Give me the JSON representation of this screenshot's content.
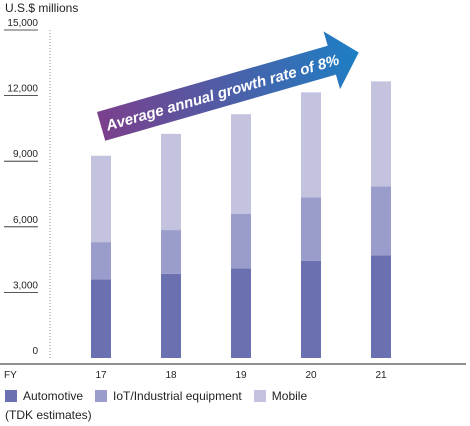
{
  "colors": {
    "automotive": "#6b70b0",
    "iot": "#9a9ccc",
    "mobile": "#c3c3e0",
    "arrow_start": "#7b3f8c",
    "arrow_end": "#1d7fc4",
    "axis": "#231f20",
    "grid_dots": "#8a8a8a"
  },
  "chart_data": {
    "type": "bar",
    "stacked": true,
    "unit_label": "U.S.$ millions",
    "x_axis_prefix": "FY",
    "categories": [
      "17",
      "18",
      "19",
      "20",
      "21"
    ],
    "series": [
      {
        "name": "Automotive",
        "values": [
          3600,
          3850,
          4100,
          4450,
          4700
        ]
      },
      {
        "name": "IoT/Industrial equipment",
        "values": [
          1700,
          2000,
          2500,
          2900,
          3150
        ]
      },
      {
        "name": "Mobile",
        "values": [
          3950,
          4400,
          4550,
          4800,
          4800
        ]
      }
    ],
    "ylim": [
      0,
      15000
    ],
    "yticks": [
      "0",
      "3,000",
      "6,000",
      "9,000",
      "12,000",
      "15,000"
    ],
    "ytick_values": [
      0,
      3000,
      6000,
      9000,
      12000,
      15000
    ],
    "annotation": "Average annual growth rate of 8%",
    "footnote": "(TDK estimates)",
    "grid": false,
    "legend_position": "bottom-left"
  }
}
